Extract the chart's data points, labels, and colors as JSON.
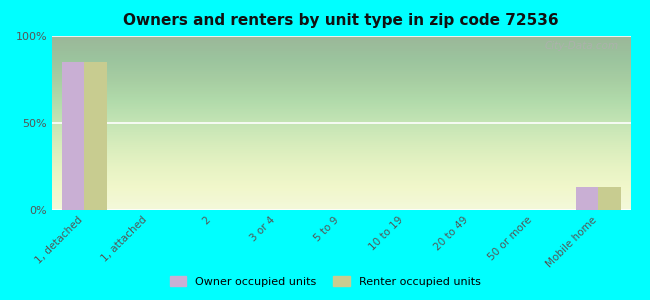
{
  "title": "Owners and renters by unit type in zip code 72536",
  "categories": [
    "1, detached",
    "1, attached",
    "2",
    "3 or 4",
    "5 to 9",
    "10 to 19",
    "20 to 49",
    "50 or more",
    "Mobile home"
  ],
  "owner_values": [
    85,
    0,
    0,
    0,
    0,
    0,
    0,
    0,
    13
  ],
  "renter_values": [
    85,
    0,
    0,
    0,
    0,
    0,
    0,
    0,
    13
  ],
  "owner_color": "#c9afd4",
  "renter_color": "#c8cc90",
  "background_color_chart_top": "#e8f5d0",
  "background_color_chart_bot": "#f5fae8",
  "background_color_fig": "#00ffff",
  "ylim": [
    0,
    100
  ],
  "yticks": [
    0,
    50,
    100
  ],
  "ytick_labels": [
    "0%",
    "50%",
    "100%"
  ],
  "legend_owner": "Owner occupied units",
  "legend_renter": "Renter occupied units",
  "bar_width": 0.35,
  "watermark": "City-Data.com"
}
